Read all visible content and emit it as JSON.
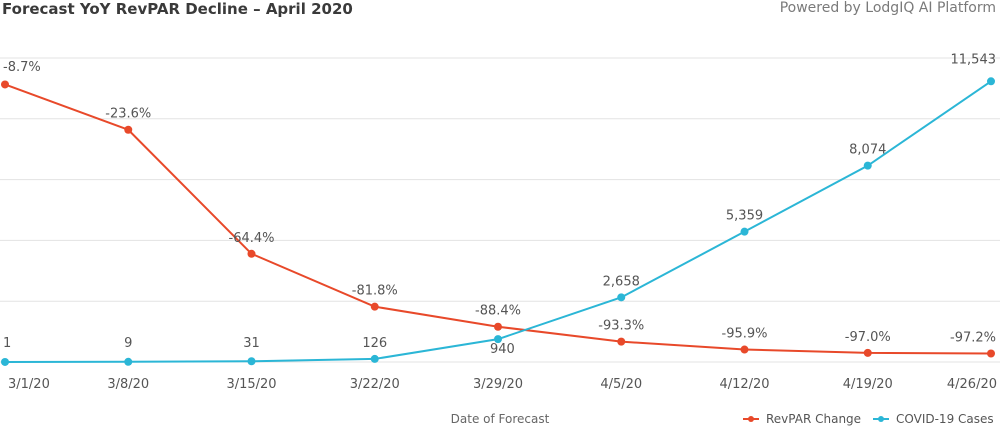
{
  "header": {
    "title": "Forecast YoY RevPAR Decline – April 2020",
    "powered_by": "Powered by LodgIQ AI Platform"
  },
  "chart_data": {
    "type": "line",
    "title": "Forecast YoY RevPAR Decline – April 2020",
    "xlabel": "Date of Forecast",
    "categories": [
      "3/1/20",
      "3/8/20",
      "3/15/20",
      "3/22/20",
      "3/29/20",
      "4/5/20",
      "4/12/20",
      "4/19/20",
      "4/26/20"
    ],
    "series": [
      {
        "name": "RevPAR Change",
        "color": "#e8492a",
        "values": [
          -8.7,
          -23.6,
          -64.4,
          -81.8,
          -88.4,
          -93.3,
          -95.9,
          -97.0,
          -97.2
        ],
        "labels": [
          "-8.7%",
          "-23.6%",
          "-64.4%",
          "-81.8%",
          "-88.4%",
          "-93.3%",
          "-95.9%",
          "-97.0%",
          "-97.2%"
        ],
        "ylim": [
          -100,
          0
        ]
      },
      {
        "name": "COVID-19 Cases",
        "color": "#2bb6d6",
        "values": [
          1,
          9,
          31,
          126,
          940,
          2658,
          5359,
          8074,
          11543
        ],
        "labels": [
          "1",
          "9",
          "31",
          "126",
          "940",
          "2,658",
          "5,359",
          "8,074",
          "11,543"
        ],
        "ylim": [
          0,
          12500
        ]
      }
    ],
    "grid": true,
    "legend": "bottom-right"
  }
}
